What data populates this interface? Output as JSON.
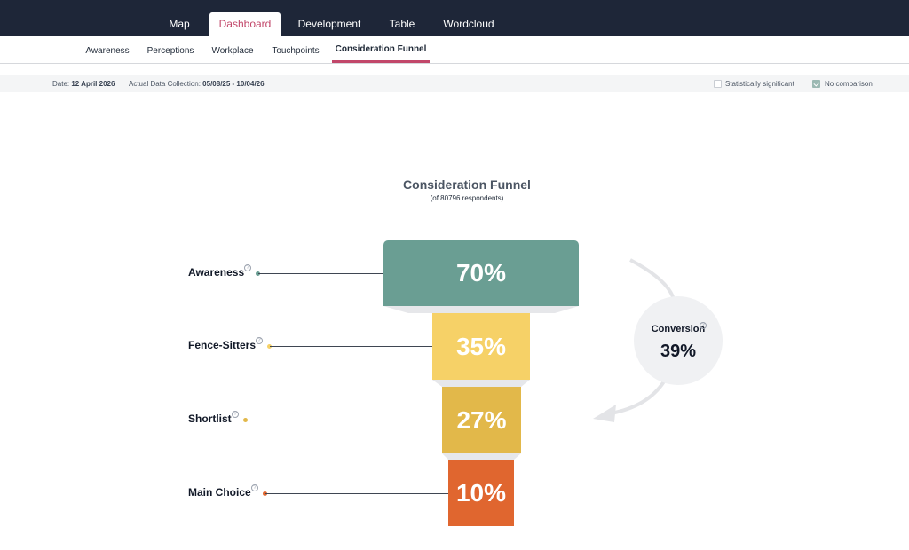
{
  "top_nav": [
    "Map",
    "Dashboard",
    "Development",
    "Table",
    "Wordcloud"
  ],
  "sub_nav": [
    "Awareness",
    "Perceptions",
    "Workplace",
    "Touchpoints",
    "Consideration Funnel"
  ],
  "info": {
    "date_label": "Date:",
    "date_value": "12 April 2026",
    "collection_label": "Actual Data Collection:",
    "collection_value": "05/08/25 - 10/04/26",
    "stat_sig_label": "Statistically significant",
    "no_comparison_label": "No comparison",
    "stat_sig_checked": false,
    "no_comparison_checked": true
  },
  "funnel": {
    "title": "Consideration Funnel",
    "subtitle": "(of 80796 respondents)",
    "stages": [
      {
        "label": "Awareness",
        "value": "70%",
        "pct": 70,
        "color": "#6a9e93"
      },
      {
        "label": "Fence-Sitters",
        "value": "35%",
        "pct": 35,
        "color": "#f6d167"
      },
      {
        "label": "Shortlist",
        "value": "27%",
        "pct": 27,
        "color": "#e2b84a"
      },
      {
        "label": "Main Choice",
        "value": "10%",
        "pct": 10,
        "color": "#e0662f"
      }
    ],
    "conversion_label": "Conversion",
    "conversion_value": "39%"
  },
  "colors": {
    "nav_bg": "#1e2638",
    "accent": "#c2476a",
    "connector": "#e6e7ea"
  }
}
